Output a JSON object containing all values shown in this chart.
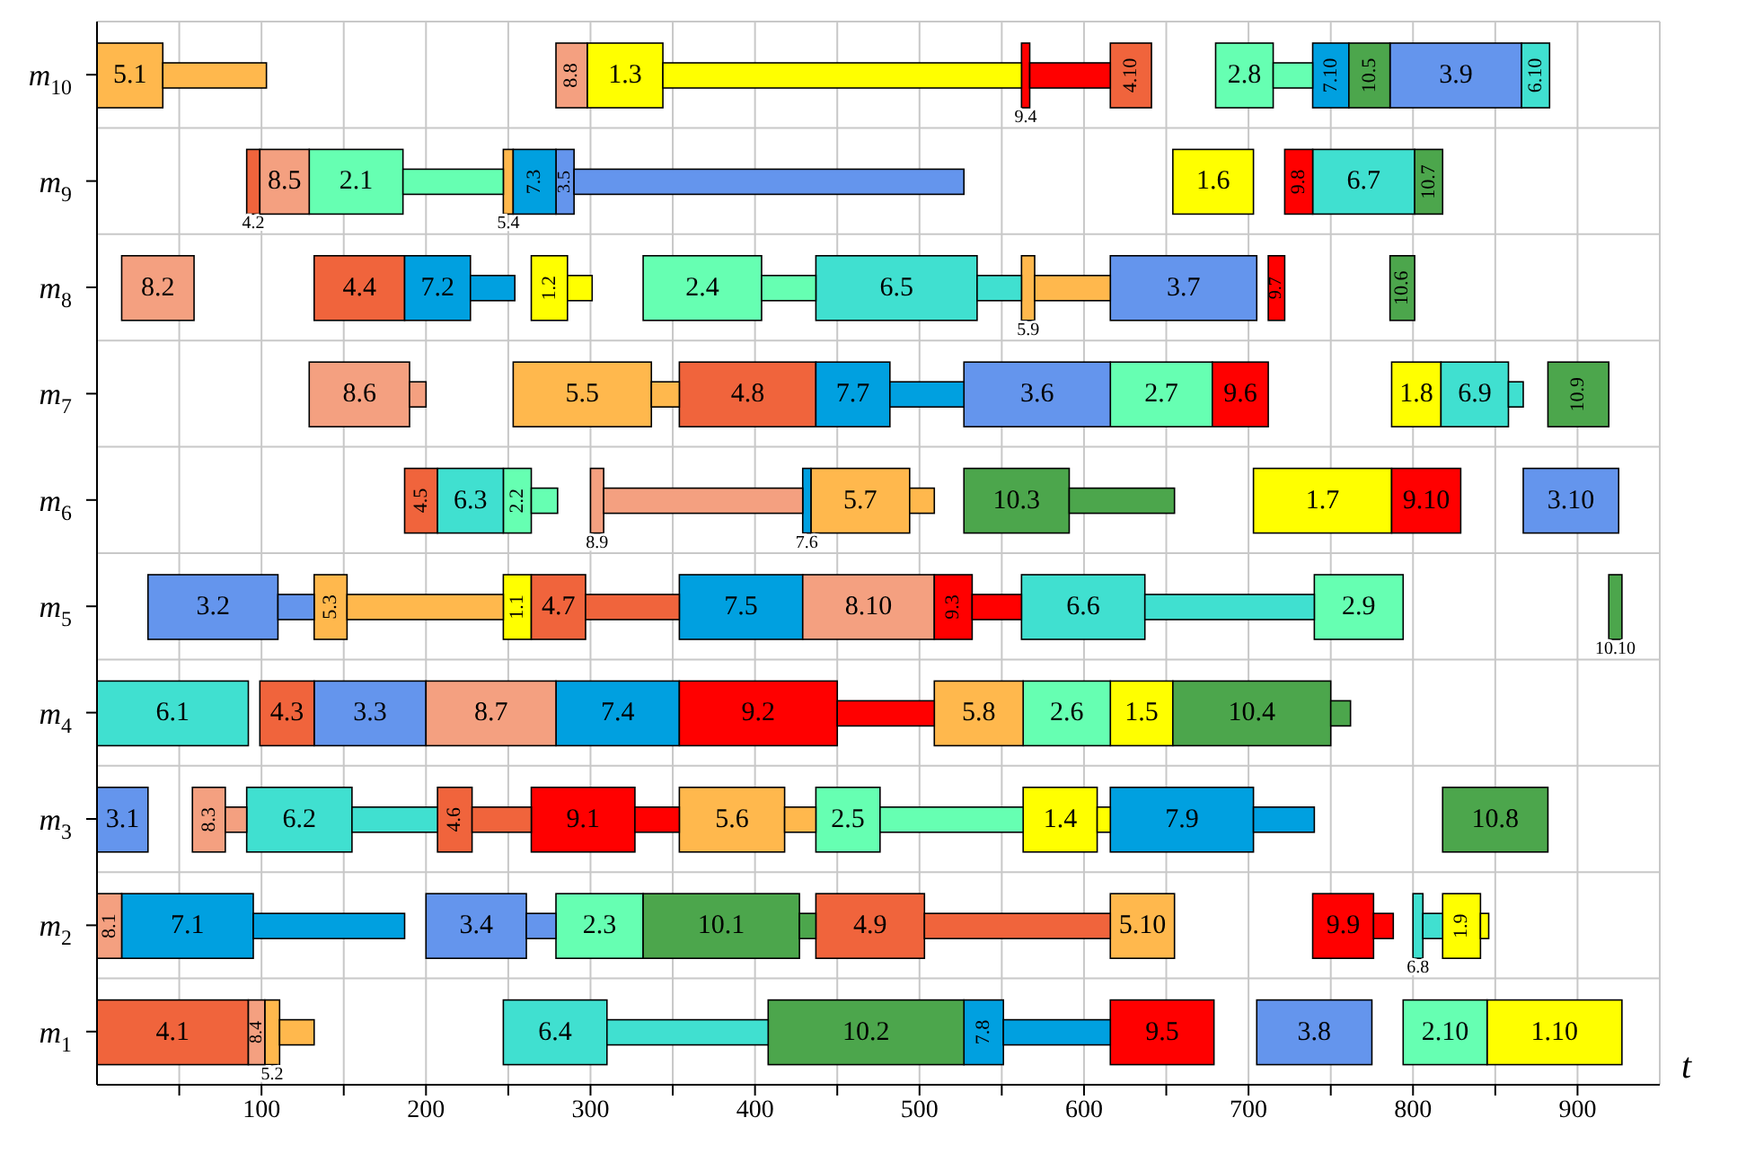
{
  "chart_data": {
    "type": "bar",
    "orientation": "horizontal",
    "xlabel": "t",
    "categories": [
      "m$_{10}$",
      "m$_{9}$",
      "m$_{8}$",
      "m$_{7}$",
      "m$_{6}$",
      "m$_{5}$",
      "m$_{4}$",
      "m$_{3}$",
      "m$_{2}$",
      "m$_{1}$"
    ],
    "xlim": [
      0,
      950
    ],
    "xticks": [
      {
        "value": 50,
        "label": null
      },
      100,
      {
        "value": 150,
        "label": null
      },
      200,
      {
        "value": 250,
        "label": null
      },
      300,
      {
        "value": 350,
        "label": null
      },
      400,
      {
        "value": 450,
        "label": null
      },
      500,
      {
        "value": 550,
        "label": null
      },
      600,
      {
        "value": 650,
        "label": null
      },
      700,
      {
        "value": 750,
        "label": null
      },
      800,
      {
        "value": 850,
        "label": null
      },
      900
    ],
    "grid": true,
    "series": [
      {
        "color": "#ffff00",
        "base": [
          298,
          654,
          264,
          787,
          703,
          247,
          616,
          563,
          818,
          845
        ],
        "values": [
          46,
          49,
          22,
          30,
          84,
          17,
          38,
          45,
          23,
          82
        ]
      },
      {
        "color": "#66ffb2",
        "base": [
          680,
          129,
          332,
          616,
          247,
          740,
          563,
          437,
          279,
          794
        ],
        "values": [
          35,
          57,
          72,
          62,
          17,
          54,
          53,
          39,
          53,
          51
        ]
      },
      {
        "color": "#6495ed",
        "base": [
          786,
          279,
          616,
          527,
          867,
          31,
          132,
          0,
          200,
          705
        ],
        "values": [
          80,
          11,
          89,
          89,
          58,
          79,
          68,
          31,
          61,
          70
        ]
      },
      {
        "color": "#f0643c",
        "base": [
          616,
          91,
          132,
          354,
          187,
          264,
          99,
          207,
          437,
          0
        ],
        "values": [
          25,
          8,
          55,
          83,
          20,
          33,
          33,
          21,
          66,
          92
        ]
      },
      {
        "color": "#ffb84d",
        "base": [
          0,
          247,
          562,
          253,
          434,
          132,
          509,
          354,
          616,
          102
        ],
        "values": [
          40,
          6,
          8,
          84,
          60,
          20,
          54,
          64,
          39,
          9
        ]
      },
      {
        "color": "#40e0d0",
        "base": [
          866,
          739,
          437,
          817,
          207,
          562,
          0,
          91,
          800,
          247
        ],
        "values": [
          17,
          62,
          98,
          41,
          40,
          75,
          92,
          64,
          6,
          63
        ]
      },
      {
        "color": "#00a0e0",
        "base": [
          739,
          253,
          187,
          437,
          429,
          354,
          279,
          616,
          15,
          527
        ],
        "values": [
          22,
          26,
          40,
          45,
          5,
          75,
          75,
          87,
          80,
          24
        ]
      },
      {
        "color": "#f4a080",
        "base": [
          279,
          99,
          15,
          129,
          300,
          429,
          200,
          58,
          0,
          92
        ],
        "values": [
          19,
          30,
          44,
          61,
          8,
          80,
          79,
          20,
          15,
          10
        ]
      },
      {
        "color": "#ff0000",
        "base": [
          562,
          722,
          712,
          678,
          787,
          509,
          354,
          264,
          739,
          616
        ],
        "values": [
          5,
          17,
          10,
          34,
          42,
          23,
          96,
          63,
          37,
          63
        ]
      },
      {
        "color": "#4ca64c",
        "base": [
          761,
          801,
          786,
          882,
          527,
          919,
          654,
          818,
          332,
          408
        ],
        "values": [
          25,
          17,
          15,
          37,
          64,
          8,
          96,
          64,
          95,
          119
        ]
      },
      {
        "color": "#ffff00",
        "base": [
          344,
          null,
          286,
          null,
          null,
          null,
          null,
          608,
          841,
          null
        ],
        "values": [
          218,
          null,
          15,
          null,
          null,
          null,
          null,
          8,
          5,
          null
        ]
      },
      {
        "color": "#66ffb2",
        "base": [
          715,
          186,
          404,
          null,
          264,
          null,
          null,
          476,
          null,
          null
        ],
        "values": [
          24,
          61,
          33,
          null,
          16,
          null,
          null,
          87,
          null,
          null
        ]
      },
      {
        "color": "#6495ed",
        "base": [
          null,
          290,
          null,
          null,
          null,
          110,
          null,
          null,
          261,
          null
        ],
        "values": [
          null,
          237,
          null,
          null,
          null,
          22,
          null,
          null,
          18,
          null
        ]
      },
      {
        "color": "#f0643c",
        "base": [
          null,
          null,
          null,
          null,
          null,
          297,
          null,
          228,
          503,
          null
        ],
        "values": [
          null,
          null,
          null,
          null,
          null,
          57,
          null,
          36,
          113,
          null
        ]
      },
      {
        "color": "#ffb84d",
        "base": [
          40,
          null,
          570,
          337,
          494,
          152,
          null,
          418,
          null,
          111
        ],
        "values": [
          63,
          null,
          46,
          17,
          15,
          95,
          null,
          19,
          null,
          21
        ]
      },
      {
        "color": "#40e0d0",
        "base": [
          null,
          null,
          535,
          858,
          null,
          637,
          null,
          155,
          806,
          310
        ],
        "values": [
          null,
          null,
          27,
          9,
          null,
          103,
          null,
          52,
          12,
          98
        ]
      },
      {
        "color": "#00a0e0",
        "base": [
          null,
          null,
          227,
          482,
          null,
          null,
          null,
          703,
          95,
          551
        ],
        "values": [
          null,
          null,
          27,
          45,
          null,
          null,
          null,
          37,
          92,
          65
        ]
      },
      {
        "color": "#f4a080",
        "base": [
          null,
          null,
          null,
          190,
          308,
          null,
          null,
          78,
          null,
          null
        ],
        "values": [
          null,
          null,
          null,
          10,
          121,
          null,
          null,
          13,
          null,
          null
        ]
      },
      {
        "color": "#ff0000",
        "base": [
          567,
          null,
          null,
          null,
          null,
          532,
          450,
          327,
          776,
          null
        ],
        "values": [
          49,
          null,
          null,
          null,
          null,
          30,
          59,
          27,
          12,
          null
        ]
      },
      {
        "color": "#4ca64c",
        "base": [
          null,
          null,
          null,
          null,
          591,
          null,
          750,
          null,
          427,
          null
        ],
        "values": [
          null,
          null,
          null,
          null,
          64,
          null,
          12,
          null,
          10,
          null
        ]
      }
    ],
    "annotations": [
      {
        "text": "1.3",
        "x": 298,
        "y": "m$_{10}$"
      },
      {
        "text": "1.6",
        "x": 654,
        "y": "m$_{9}$"
      },
      {
        "text": "1.2",
        "x": 264,
        "y": "m$_{8}$"
      },
      {
        "text": "1.8",
        "x": 787,
        "y": "m$_{7}$"
      },
      {
        "text": "1.7",
        "x": 703,
        "y": "m$_{6}$"
      },
      {
        "text": "1.1",
        "x": 247,
        "y": "m$_{5}$"
      },
      {
        "text": "1.5",
        "x": 616,
        "y": "m$_{4}$"
      },
      {
        "text": "1.4",
        "x": 563,
        "y": "m$_{3}$"
      },
      {
        "text": "1.9",
        "x": 818,
        "y": "m$_{2}$"
      },
      {
        "text": "1.10",
        "x": 845,
        "y": "m$_{1}$"
      },
      {
        "text": "2.8",
        "x": 680,
        "y": "m$_{10}$"
      },
      {
        "text": "2.1",
        "x": 129,
        "y": "m$_{9}$"
      },
      {
        "text": "2.4",
        "x": 332,
        "y": "m$_{8}$"
      },
      {
        "text": "2.7",
        "x": 616,
        "y": "m$_{7}$"
      },
      {
        "text": "2.2",
        "x": 247,
        "y": "m$_{6}$"
      },
      {
        "text": "2.9",
        "x": 740,
        "y": "m$_{5}$"
      },
      {
        "text": "2.6",
        "x": 563,
        "y": "m$_{4}$"
      },
      {
        "text": "2.5",
        "x": 437,
        "y": "m$_{3}$"
      },
      {
        "text": "2.3",
        "x": 279,
        "y": "m$_{2}$"
      },
      {
        "text": "2.10",
        "x": 794,
        "y": "m$_{1}$"
      },
      {
        "text": "3.9",
        "x": 786,
        "y": "m$_{10}$"
      },
      {
        "text": "3.5",
        "x": 279,
        "y": "m$_{9}$"
      },
      {
        "text": "3.7",
        "x": 616,
        "y": "m$_{8}$"
      },
      {
        "text": "3.6",
        "x": 527,
        "y": "m$_{7}$"
      },
      {
        "text": "3.10",
        "x": 867,
        "y": "m$_{6}$"
      },
      {
        "text": "3.2",
        "x": 31,
        "y": "m$_{5}$"
      },
      {
        "text": "3.3",
        "x": 132,
        "y": "m$_{4}$"
      },
      {
        "text": "3.1",
        "x": 0,
        "y": "m$_{3}$"
      },
      {
        "text": "3.4",
        "x": 200,
        "y": "m$_{2}$"
      },
      {
        "text": "3.8",
        "x": 705,
        "y": "m$_{1}$"
      },
      {
        "text": "4.10",
        "x": 616,
        "y": "m$_{10}$"
      },
      {
        "text": "4.2",
        "x": 91,
        "y": "m$_{9}$"
      },
      {
        "text": "4.4",
        "x": 132,
        "y": "m$_{8}$"
      },
      {
        "text": "4.8",
        "x": 354,
        "y": "m$_{7}$"
      },
      {
        "text": "4.5",
        "x": 187,
        "y": "m$_{6}$"
      },
      {
        "text": "4.7",
        "x": 264,
        "y": "m$_{5}$"
      },
      {
        "text": "4.3",
        "x": 99,
        "y": "m$_{4}$"
      },
      {
        "text": "4.6",
        "x": 207,
        "y": "m$_{3}$"
      },
      {
        "text": "4.9",
        "x": 437,
        "y": "m$_{2}$"
      },
      {
        "text": "4.1",
        "x": 0,
        "y": "m$_{1}$"
      },
      {
        "text": "5.1",
        "x": 0,
        "y": "m$_{10}$"
      },
      {
        "text": "5.4",
        "x": 247,
        "y": "m$_{9}$"
      },
      {
        "text": "5.9",
        "x": 562,
        "y": "m$_{8}$"
      },
      {
        "text": "5.5",
        "x": 253,
        "y": "m$_{7}$"
      },
      {
        "text": "5.7",
        "x": 434,
        "y": "m$_{6}$"
      },
      {
        "text": "5.3",
        "x": 132,
        "y": "m$_{5}$"
      },
      {
        "text": "5.8",
        "x": 509,
        "y": "m$_{4}$"
      },
      {
        "text": "5.6",
        "x": 354,
        "y": "m$_{3}$"
      },
      {
        "text": "5.10",
        "x": 616,
        "y": "m$_{2}$"
      },
      {
        "text": "5.2",
        "x": 102,
        "y": "m$_{1}$"
      },
      {
        "text": "6.10",
        "x": 866,
        "y": "m$_{10}$"
      },
      {
        "text": "6.7",
        "x": 739,
        "y": "m$_{9}$"
      },
      {
        "text": "6.5",
        "x": 437,
        "y": "m$_{8}$"
      },
      {
        "text": "6.9",
        "x": 817,
        "y": "m$_{7}$"
      },
      {
        "text": "6.3",
        "x": 207,
        "y": "m$_{6}$"
      },
      {
        "text": "6.6",
        "x": 562,
        "y": "m$_{5}$"
      },
      {
        "text": "6.1",
        "x": 0,
        "y": "m$_{4}$"
      },
      {
        "text": "6.2",
        "x": 91,
        "y": "m$_{3}$"
      },
      {
        "text": "6.8",
        "x": 800,
        "y": "m$_{2}$"
      },
      {
        "text": "6.4",
        "x": 247,
        "y": "m$_{1}$"
      },
      {
        "text": "7.10",
        "x": 739,
        "y": "m$_{10}$"
      },
      {
        "text": "7.3",
        "x": 253,
        "y": "m$_{9}$"
      },
      {
        "text": "7.2",
        "x": 187,
        "y": "m$_{8}$"
      },
      {
        "text": "7.7",
        "x": 437,
        "y": "m$_{7}$"
      },
      {
        "text": "7.6",
        "x": 429,
        "y": "m$_{6}$"
      },
      {
        "text": "7.5",
        "x": 354,
        "y": "m$_{5}$"
      },
      {
        "text": "7.4",
        "x": 279,
        "y": "m$_{4}$"
      },
      {
        "text": "7.9",
        "x": 616,
        "y": "m$_{3}$"
      },
      {
        "text": "7.1",
        "x": 15,
        "y": "m$_{2}$"
      },
      {
        "text": "7.8",
        "x": 527,
        "y": "m$_{1}$"
      },
      {
        "text": "8.8",
        "x": 279,
        "y": "m$_{10}$"
      },
      {
        "text": "8.5",
        "x": 99,
        "y": "m$_{9}$"
      },
      {
        "text": "8.2",
        "x": 15,
        "y": "m$_{8}$"
      },
      {
        "text": "8.6",
        "x": 129,
        "y": "m$_{7}$"
      },
      {
        "text": "8.9",
        "x": 300,
        "y": "m$_{6}$"
      },
      {
        "text": "8.10",
        "x": 429,
        "y": "m$_{5}$"
      },
      {
        "text": "8.7",
        "x": 200,
        "y": "m$_{4}$"
      },
      {
        "text": "8.3",
        "x": 58,
        "y": "m$_{3}$"
      },
      {
        "text": "8.1",
        "x": 0,
        "y": "m$_{2}$"
      },
      {
        "text": "8.4",
        "x": 92,
        "y": "m$_{1}$"
      },
      {
        "text": "9.4",
        "x": 562,
        "y": "m$_{10}$"
      },
      {
        "text": "9.8",
        "x": 722,
        "y": "m$_{9}$"
      },
      {
        "text": "9.7",
        "x": 712,
        "y": "m$_{8}$"
      },
      {
        "text": "9.6",
        "x": 678,
        "y": "m$_{7}$"
      },
      {
        "text": "9.10",
        "x": 787,
        "y": "m$_{6}$"
      },
      {
        "text": "9.3",
        "x": 509,
        "y": "m$_{5}$"
      },
      {
        "text": "9.2",
        "x": 354,
        "y": "m$_{4}$"
      },
      {
        "text": "9.1",
        "x": 264,
        "y": "m$_{3}$"
      },
      {
        "text": "9.9",
        "x": 739,
        "y": "m$_{2}$"
      },
      {
        "text": "9.5",
        "x": 616,
        "y": "m$_{1}$"
      },
      {
        "text": "10.5",
        "x": 761,
        "y": "m$_{10}$"
      },
      {
        "text": "10.7",
        "x": 801,
        "y": "m$_{9}$"
      },
      {
        "text": "10.6",
        "x": 786,
        "y": "m$_{8}$"
      },
      {
        "text": "10.9",
        "x": 882,
        "y": "m$_{7}$"
      },
      {
        "text": "10.3",
        "x": 527,
        "y": "m$_{6}$"
      },
      {
        "text": "10.10",
        "x": 919,
        "y": "m$_{5}$"
      },
      {
        "text": "10.4",
        "x": 654,
        "y": "m$_{4}$"
      },
      {
        "text": "10.8",
        "x": 818,
        "y": "m$_{3}$"
      },
      {
        "text": "10.1",
        "x": 332,
        "y": "m$_{2}$"
      },
      {
        "text": "10.2",
        "x": 408,
        "y": "m$_{1}$"
      }
    ]
  }
}
